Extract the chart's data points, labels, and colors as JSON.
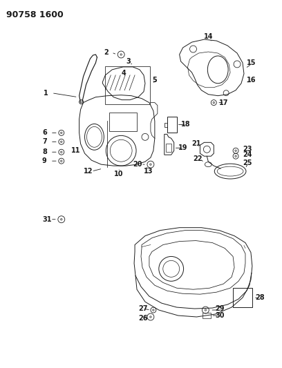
{
  "title": "90758 1600",
  "bg_color": "#ffffff",
  "line_color": "#1a1a1a",
  "title_fontsize": 9,
  "label_fontsize": 7,
  "fig_w": 4.08,
  "fig_h": 5.33,
  "dpi": 100
}
